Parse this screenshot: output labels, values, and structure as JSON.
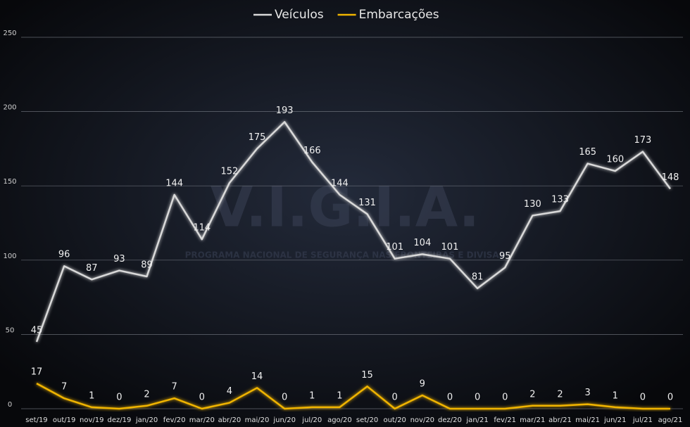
{
  "chart_data": {
    "type": "line",
    "categories": [
      "set/19",
      "out/19",
      "nov/19",
      "dez/19",
      "jan/20",
      "fev/20",
      "mar/20",
      "abr/20",
      "mai/20",
      "jun/20",
      "jul/20",
      "ago/20",
      "set/20",
      "out/20",
      "nov/20",
      "dez/20",
      "jan/21",
      "fev/21",
      "mar/21",
      "abr/21",
      "mai/21",
      "jun/21",
      "jul/21",
      "ago/21"
    ],
    "series": [
      {
        "name": "Veículos",
        "color": "#d9d9d9",
        "values": [
          45,
          96,
          87,
          93,
          89,
          144,
          114,
          152,
          175,
          193,
          166,
          144,
          131,
          101,
          104,
          101,
          81,
          95,
          130,
          133,
          165,
          160,
          173,
          148
        ]
      },
      {
        "name": "Embarcações",
        "color": "#f0b400",
        "values": [
          17,
          7,
          1,
          0,
          2,
          7,
          0,
          4,
          14,
          0,
          1,
          1,
          15,
          0,
          9,
          0,
          0,
          0,
          2,
          2,
          3,
          1,
          0,
          0
        ]
      }
    ],
    "ylim": [
      0,
      250
    ],
    "yticks": [
      0,
      50,
      100,
      150,
      200,
      250
    ],
    "grid": true,
    "legend": "top",
    "watermark": {
      "title": "V.I.G.I.A.",
      "subtitle": "PROGRAMA NACIONAL DE SEGURANÇA NAS FRONTEIRAS E DIVISAS"
    }
  }
}
